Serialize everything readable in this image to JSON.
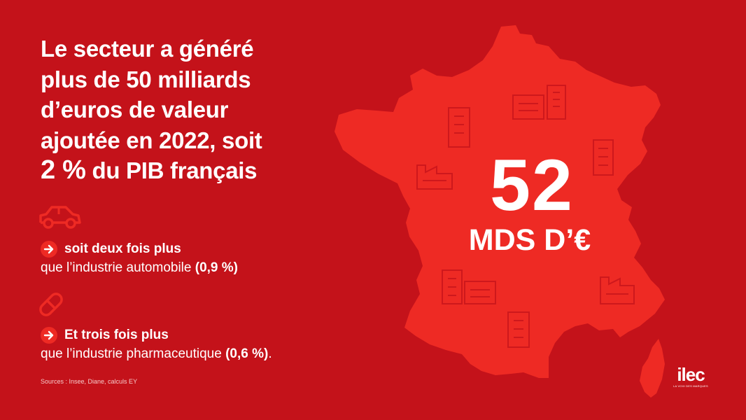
{
  "headline": {
    "lines": [
      "Le secteur a généré",
      "plus de 50 milliards",
      "d’euros de valeur",
      "ajoutée en 2022, soit"
    ],
    "pct": "2 %",
    "last_rest": " du PIB français"
  },
  "points": [
    {
      "icon": "car-icon",
      "title": "soit deux fois plus",
      "desc": "que l’industrie automobile ",
      "value": "(0,9 %)"
    },
    {
      "icon": "pill-icon",
      "title": "Et trois fois plus",
      "desc": "que l’industrie pharmaceutique ",
      "value": "(0,6 %)",
      "suffix": "."
    }
  ],
  "sources": "Sources : Insee, Diane, calculs EY",
  "figure": {
    "number": "52",
    "unit": "MDS D’€"
  },
  "logo": {
    "name": "ilec",
    "tagline": "LA VOIX DES MARQUES"
  },
  "colors": {
    "background": "#C4121A",
    "map": "#EE2A24",
    "icon_outline": "#C4121A",
    "text": "#FFFFFF"
  }
}
